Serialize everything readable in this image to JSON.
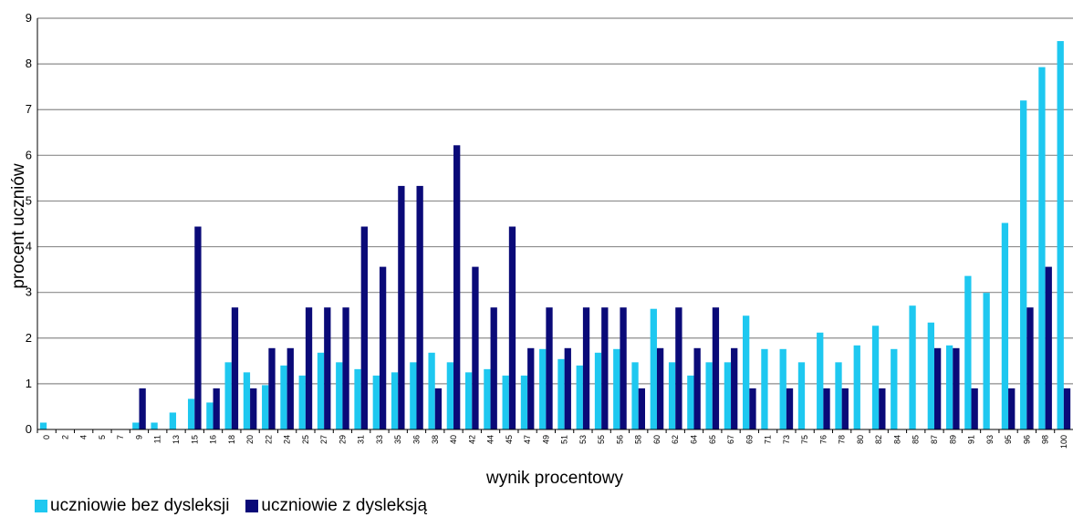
{
  "chart_data": {
    "type": "bar",
    "xlabel": "wynik procentowy",
    "ylabel": "procent uczniów",
    "ylim": [
      0,
      9
    ],
    "yticks": [
      0,
      1,
      2,
      3,
      4,
      5,
      6,
      7,
      8,
      9
    ],
    "grid": true,
    "legend_position": "bottom-left",
    "categories": [
      "0",
      "2",
      "4",
      "5",
      "7",
      "9",
      "11",
      "13",
      "15",
      "16",
      "18",
      "20",
      "22",
      "24",
      "25",
      "27",
      "29",
      "31",
      "33",
      "35",
      "36",
      "38",
      "40",
      "42",
      "44",
      "45",
      "47",
      "49",
      "51",
      "53",
      "55",
      "56",
      "58",
      "60",
      "62",
      "64",
      "65",
      "67",
      "69",
      "71",
      "73",
      "75",
      "76",
      "78",
      "80",
      "82",
      "84",
      "85",
      "87",
      "89",
      "91",
      "93",
      "95",
      "96",
      "98",
      "100"
    ],
    "series": [
      {
        "name": "uczniowie bez dysleksji",
        "color": "#1ec8f0",
        "values": [
          0.15,
          0,
          0,
          0,
          0,
          0.15,
          0.15,
          0.37,
          0.67,
          0.59,
          1.47,
          1.25,
          0.97,
          1.4,
          1.18,
          1.68,
          1.47,
          1.32,
          1.18,
          1.25,
          1.47,
          1.68,
          1.47,
          1.25,
          1.32,
          1.18,
          1.18,
          1.76,
          1.54,
          1.4,
          1.68,
          1.76,
          1.47,
          2.64,
          1.47,
          1.18,
          1.47,
          1.47,
          2.49,
          1.76,
          1.76,
          1.47,
          2.12,
          1.47,
          1.84,
          2.27,
          1.76,
          2.71,
          2.34,
          1.84,
          3.36,
          2.99,
          4.52,
          7.2,
          7.93,
          8.5
        ]
      },
      {
        "name": "uczniowie z dysleksją",
        "color": "#0a0a78",
        "values": [
          0,
          0,
          0,
          0,
          0,
          0.9,
          0,
          0,
          4.44,
          0.9,
          2.67,
          0.9,
          1.78,
          1.78,
          2.67,
          2.67,
          2.67,
          4.44,
          3.56,
          5.33,
          5.33,
          0.9,
          6.22,
          3.56,
          2.67,
          4.44,
          1.78,
          2.67,
          1.78,
          2.67,
          2.67,
          2.67,
          0.9,
          1.78,
          2.67,
          1.78,
          2.67,
          1.78,
          0.9,
          0,
          0.9,
          0,
          0.9,
          0.9,
          0,
          0.9,
          0,
          0,
          1.78,
          1.78,
          0.9,
          0,
          0.9,
          2.67,
          3.56,
          0.9
        ]
      }
    ]
  }
}
